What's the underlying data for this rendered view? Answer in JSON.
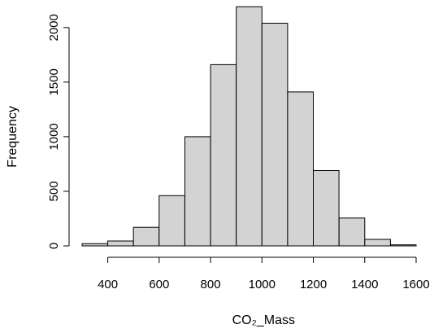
{
  "chart_data": {
    "type": "bar",
    "subtype": "histogram",
    "title": "",
    "xlabel": "CO₂_Mass",
    "ylabel": "Frequency",
    "bin_edges": [
      300,
      400,
      500,
      600,
      700,
      800,
      900,
      1000,
      1100,
      1200,
      1300,
      1400,
      1500,
      1600
    ],
    "values": [
      20,
      45,
      170,
      460,
      1000,
      1660,
      2190,
      2040,
      1410,
      690,
      255,
      60,
      10
    ],
    "xlim": [
      300,
      1600
    ],
    "ylim": [
      0,
      2200
    ],
    "x_ticks": [
      400,
      600,
      800,
      1000,
      1200,
      1400,
      1600
    ],
    "x_tick_labels": [
      "400",
      "600",
      "800",
      "1000",
      "1200",
      "1400",
      "1600"
    ],
    "y_ticks": [
      0,
      500,
      1000,
      1500,
      2000
    ],
    "y_tick_labels": [
      "0",
      "500",
      "1000",
      "1500",
      "2000"
    ],
    "bar_color": "#d3d3d3",
    "grid": false,
    "legend": "none"
  }
}
